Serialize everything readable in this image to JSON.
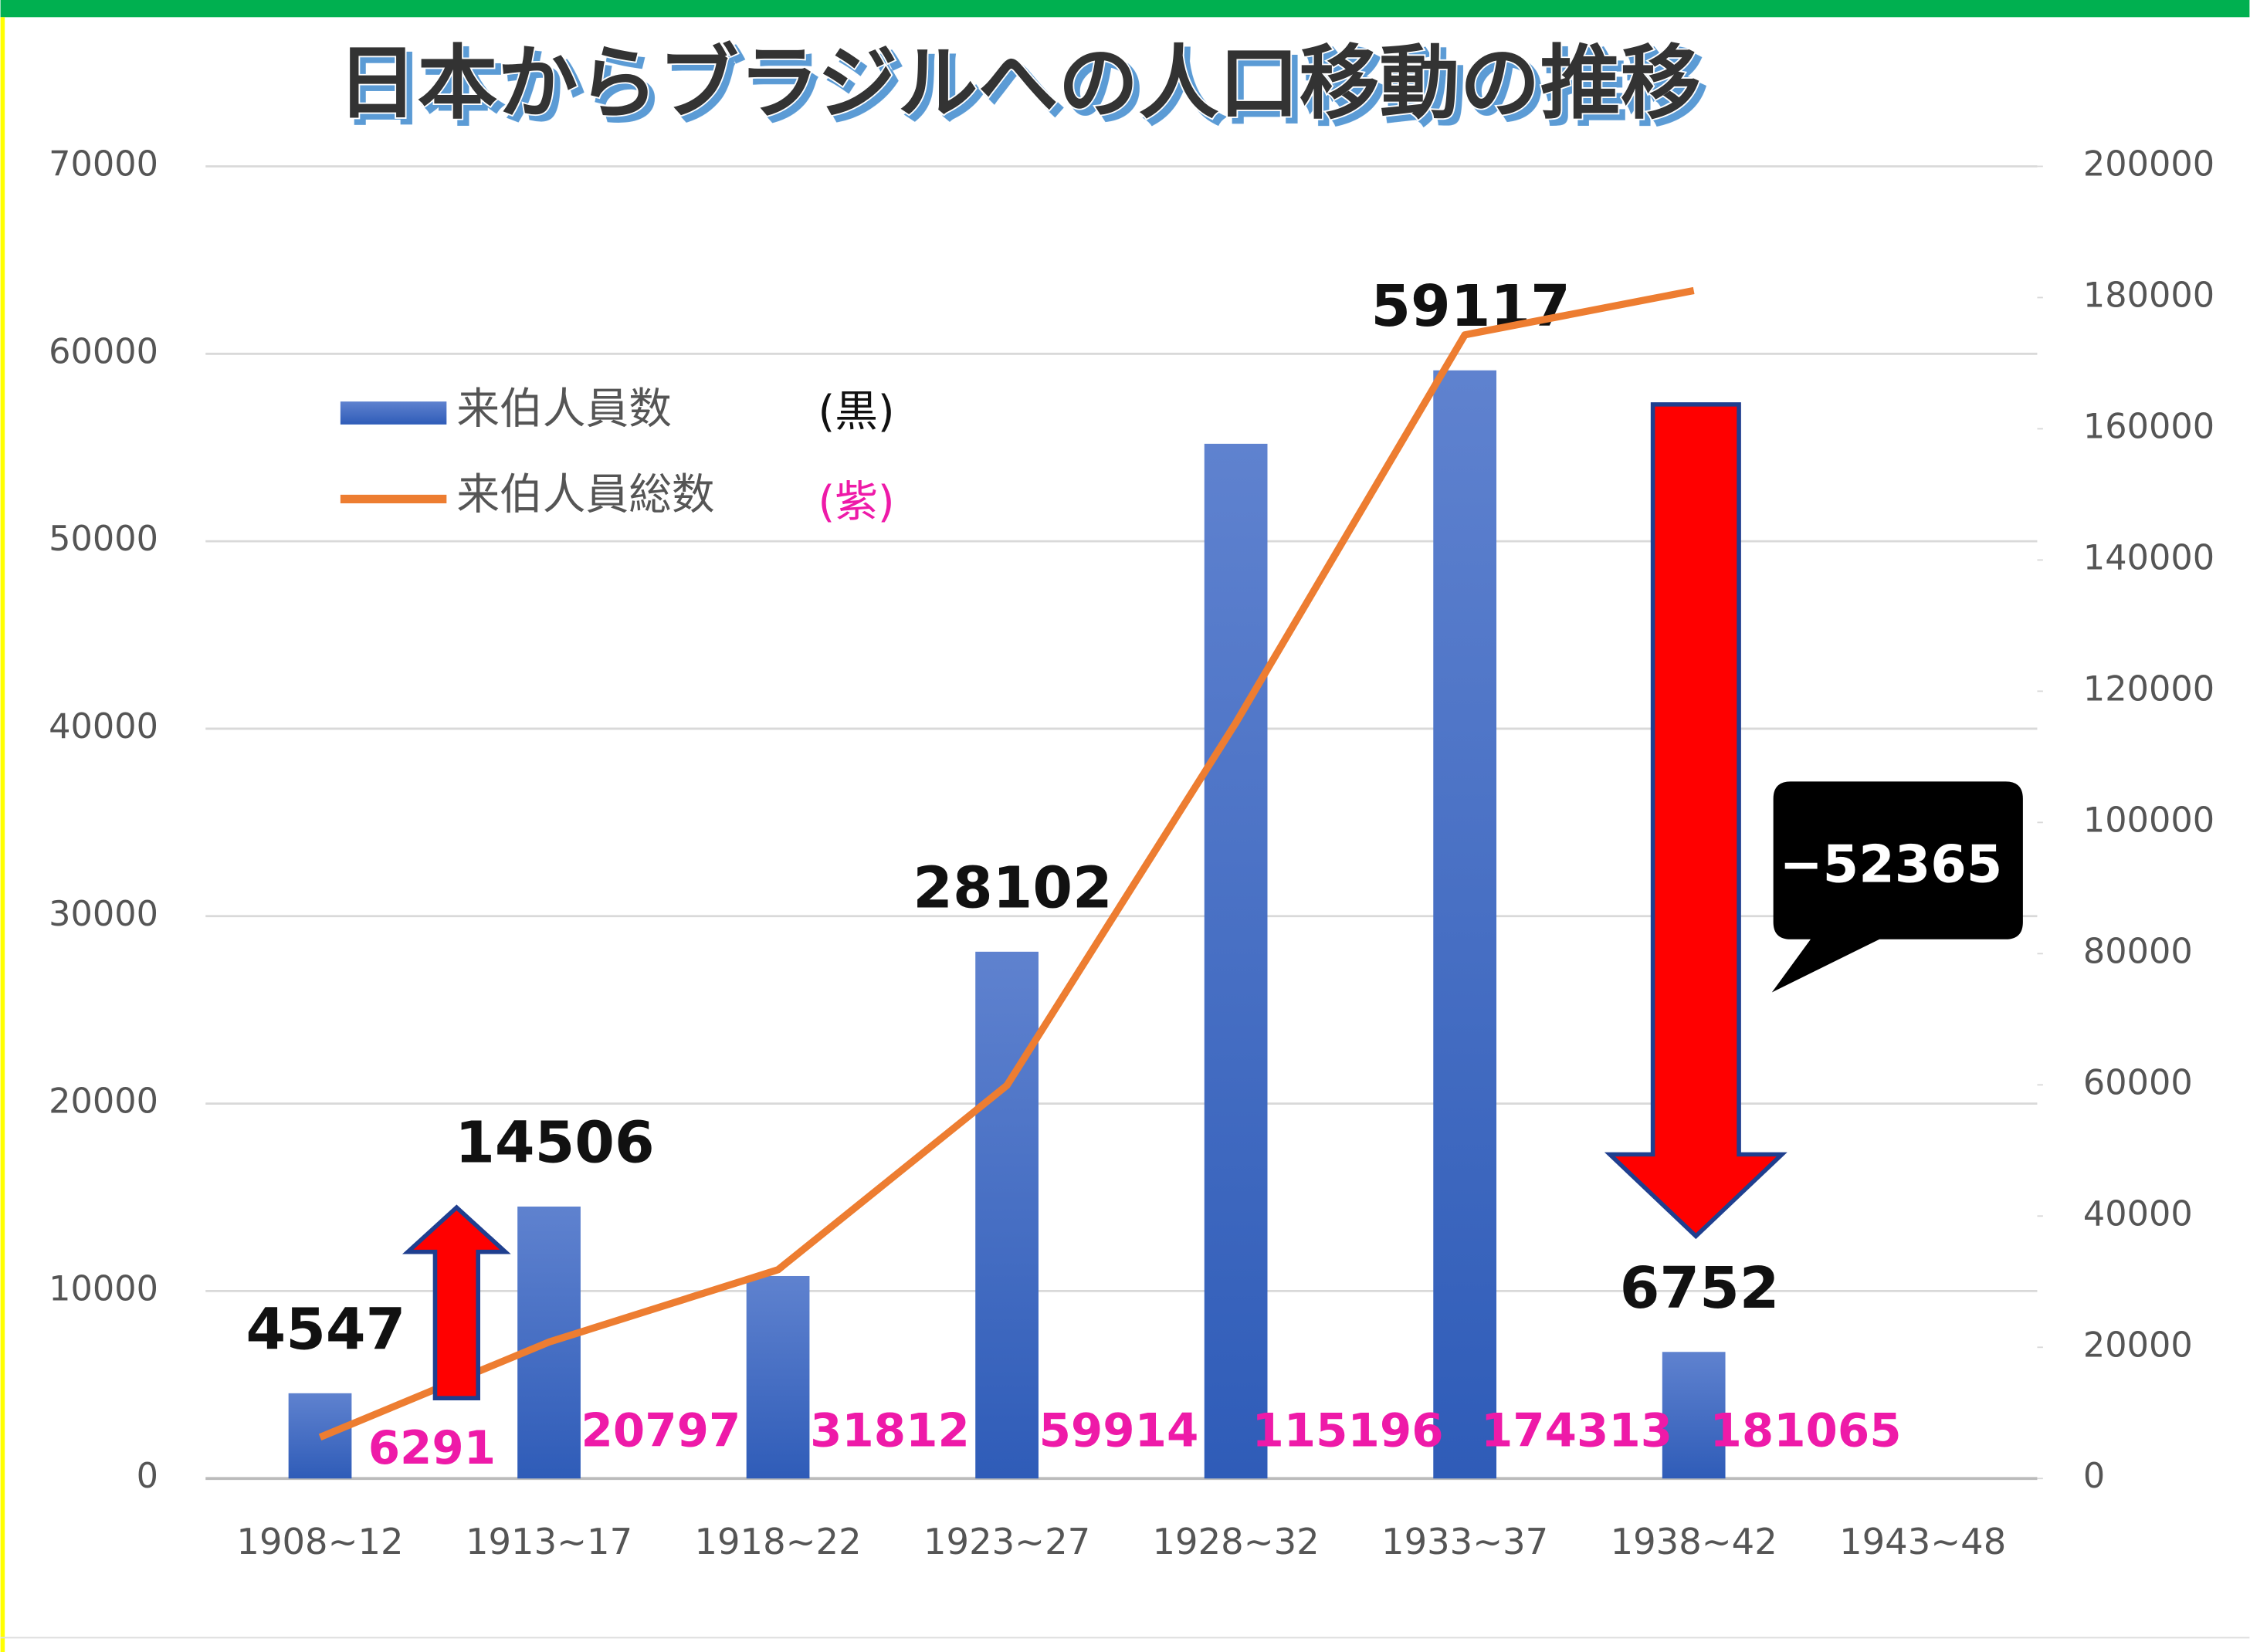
{
  "chart_data": {
    "type": "bar",
    "title": "日本からブラジルへの人口移動の推移",
    "categories": [
      "1908~12",
      "1913~17",
      "1918~22",
      "1923~27",
      "1928~32",
      "1933~37",
      "1938~42",
      "1943~48"
    ],
    "series": [
      {
        "name": "来伯人員数",
        "color": "#4472c4",
        "values": [
          4547,
          14506,
          10800,
          28102,
          55200,
          59117,
          6752,
          null
        ],
        "value_labels": [
          "4547",
          "14506",
          null,
          "28102",
          null,
          "59117",
          "6752",
          null
        ]
      },
      {
        "name": "来伯人員総数",
        "color": "#ed7d31",
        "axis": "y2",
        "values": [
          6291,
          20797,
          31812,
          59914,
          115196,
          174313,
          181065,
          null
        ]
      }
    ],
    "ylim": [
      0,
      70000
    ],
    "yticks": [
      0,
      10000,
      20000,
      30000,
      40000,
      50000,
      60000,
      70000
    ],
    "y2lim": [
      0,
      200000
    ],
    "y2ticks": [
      0,
      20000,
      40000,
      60000,
      80000,
      100000,
      120000,
      140000,
      160000,
      180000,
      200000
    ],
    "grid": true,
    "legend": "upper left",
    "annotations": [
      {
        "text": "(黒)"
      },
      {
        "text": "(紫)"
      },
      {
        "text": "−52365"
      }
    ]
  }
}
